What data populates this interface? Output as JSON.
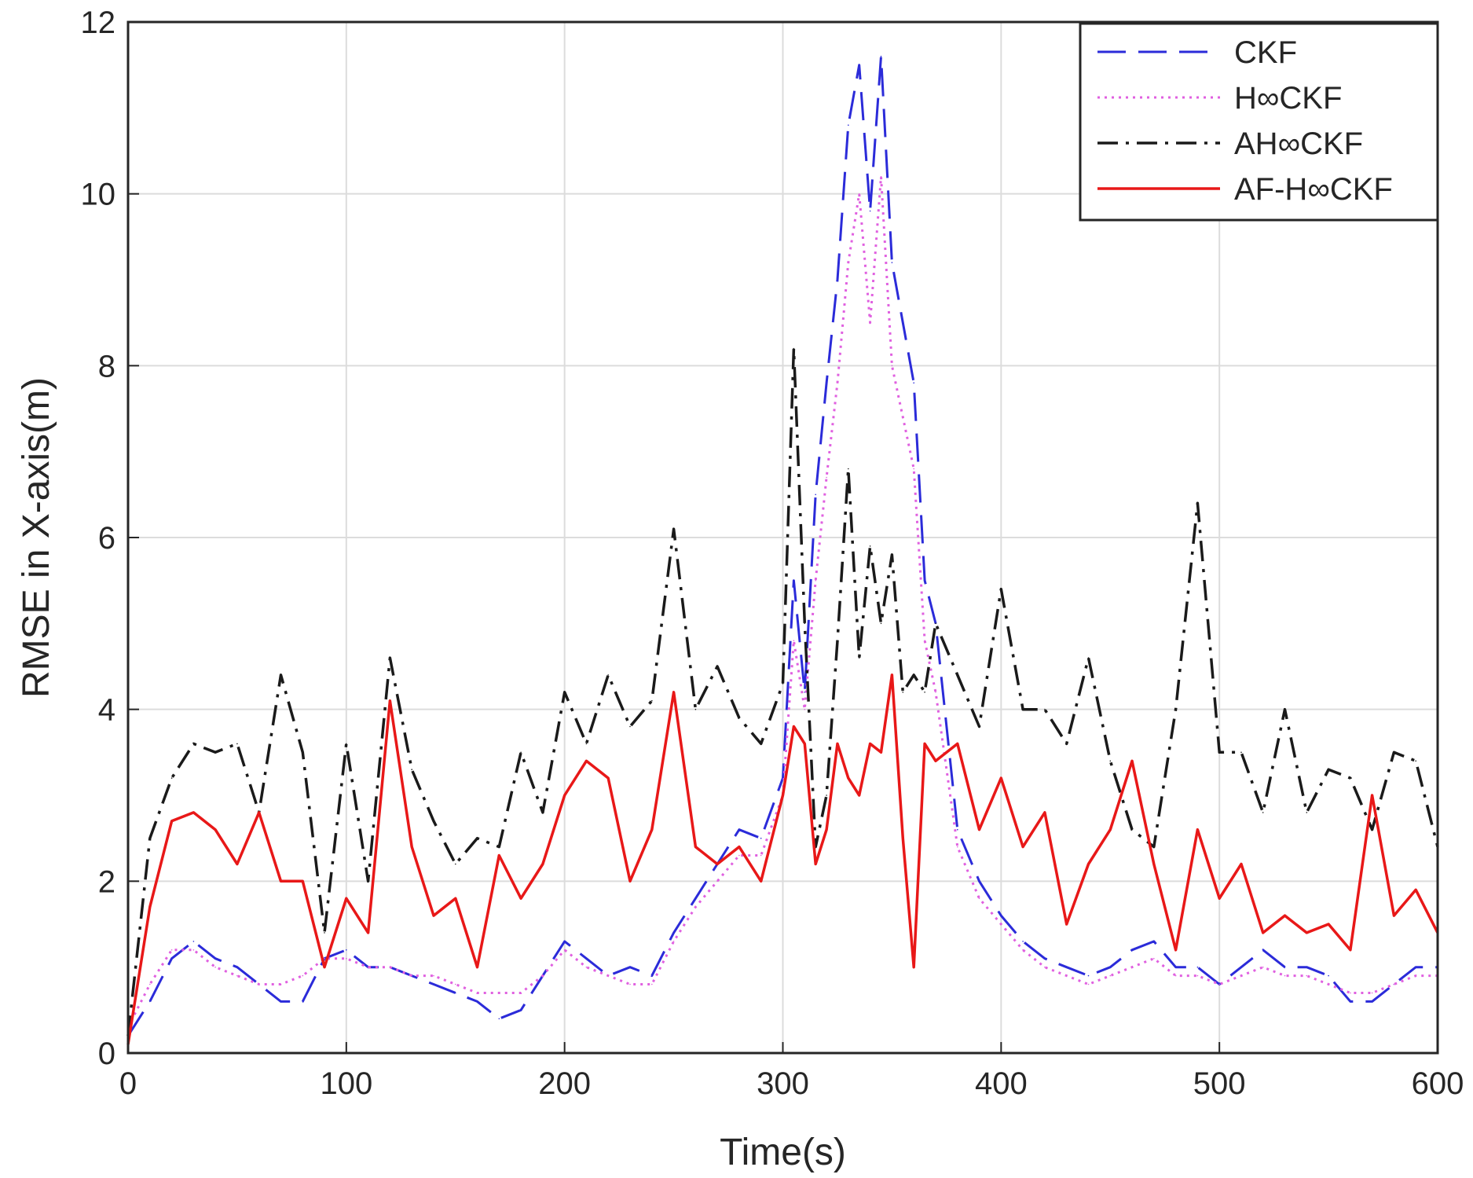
{
  "chart_data": {
    "type": "line",
    "title": "",
    "xlabel": "Time(s)",
    "ylabel": "RMSE in X-axis(m)",
    "xlim": [
      0,
      600
    ],
    "ylim": [
      0,
      12
    ],
    "x_ticks": [
      "0",
      "100",
      "200",
      "300",
      "400",
      "500",
      "600"
    ],
    "y_ticks": [
      "0",
      "2",
      "4",
      "6",
      "8",
      "10",
      "12"
    ],
    "grid": true,
    "legend_position": "top-right",
    "x": [
      0,
      10,
      20,
      30,
      40,
      50,
      60,
      70,
      80,
      90,
      100,
      110,
      120,
      130,
      140,
      150,
      160,
      170,
      180,
      190,
      200,
      210,
      220,
      230,
      240,
      250,
      260,
      270,
      280,
      290,
      300,
      305,
      310,
      315,
      320,
      325,
      330,
      335,
      340,
      345,
      350,
      355,
      360,
      365,
      370,
      380,
      390,
      400,
      410,
      420,
      430,
      440,
      450,
      460,
      470,
      480,
      490,
      500,
      510,
      520,
      530,
      540,
      550,
      560,
      570,
      580,
      590,
      600
    ],
    "series": [
      {
        "name": "CKF",
        "color": "#2b2bd9",
        "style": "dashed",
        "values": [
          0.2,
          0.6,
          1.1,
          1.3,
          1.1,
          1.0,
          0.8,
          0.6,
          0.6,
          1.1,
          1.2,
          1.0,
          1.0,
          0.9,
          0.8,
          0.7,
          0.6,
          0.4,
          0.5,
          0.9,
          1.3,
          1.1,
          0.9,
          1.0,
          0.9,
          1.4,
          1.8,
          2.2,
          2.6,
          2.5,
          3.2,
          5.5,
          4.2,
          6.5,
          7.8,
          9.0,
          10.8,
          11.5,
          9.8,
          11.6,
          9.2,
          8.5,
          7.8,
          5.5,
          5.0,
          2.6,
          2.0,
          1.6,
          1.3,
          1.1,
          1.0,
          0.9,
          1.0,
          1.2,
          1.3,
          1.0,
          1.0,
          0.8,
          1.0,
          1.2,
          1.0,
          1.0,
          0.9,
          0.6,
          0.6,
          0.8,
          1.0,
          1.0
        ]
      },
      {
        "name": "H∞CKF",
        "color": "#e060e0",
        "style": "dotted",
        "values": [
          0.3,
          0.8,
          1.2,
          1.2,
          1.0,
          0.9,
          0.8,
          0.8,
          0.9,
          1.1,
          1.1,
          1.0,
          1.0,
          0.9,
          0.9,
          0.8,
          0.7,
          0.7,
          0.7,
          0.9,
          1.2,
          1.0,
          0.9,
          0.8,
          0.8,
          1.3,
          1.7,
          2.0,
          2.3,
          2.3,
          3.0,
          4.8,
          4.0,
          5.5,
          6.7,
          7.8,
          9.2,
          10.0,
          8.5,
          10.2,
          8.0,
          7.4,
          6.8,
          4.8,
          4.2,
          2.4,
          1.8,
          1.5,
          1.2,
          1.0,
          0.9,
          0.8,
          0.9,
          1.0,
          1.1,
          0.9,
          0.9,
          0.8,
          0.9,
          1.0,
          0.9,
          0.9,
          0.8,
          0.7,
          0.7,
          0.8,
          0.9,
          0.9
        ]
      },
      {
        "name": "AH∞CKF",
        "color": "#1a1a1a",
        "style": "dash-dot",
        "values": [
          0.2,
          2.5,
          3.2,
          3.6,
          3.5,
          3.6,
          2.8,
          4.4,
          3.5,
          1.4,
          3.6,
          2.0,
          4.6,
          3.3,
          2.7,
          2.2,
          2.5,
          2.4,
          3.5,
          2.8,
          4.2,
          3.6,
          4.4,
          3.8,
          4.1,
          6.1,
          4.0,
          4.5,
          3.9,
          3.6,
          4.3,
          8.2,
          5.0,
          2.4,
          3.0,
          4.8,
          6.8,
          4.6,
          5.9,
          5.0,
          5.8,
          4.2,
          4.4,
          4.2,
          5.0,
          4.4,
          3.8,
          5.4,
          4.0,
          4.0,
          3.6,
          4.6,
          3.4,
          2.6,
          2.4,
          4.0,
          6.4,
          3.5,
          3.5,
          2.8,
          4.0,
          2.8,
          3.3,
          3.2,
          2.6,
          3.5,
          3.4,
          2.4
        ]
      },
      {
        "name": "AF-H∞CKF",
        "color": "#e81818",
        "style": "solid",
        "values": [
          0.1,
          1.7,
          2.7,
          2.8,
          2.6,
          2.2,
          2.8,
          2.0,
          2.0,
          1.0,
          1.8,
          1.4,
          4.1,
          2.4,
          1.6,
          1.8,
          1.0,
          2.3,
          1.8,
          2.2,
          3.0,
          3.4,
          3.2,
          2.0,
          2.6,
          4.2,
          2.4,
          2.2,
          2.4,
          2.0,
          3.0,
          3.8,
          3.6,
          2.2,
          2.6,
          3.6,
          3.2,
          3.0,
          3.6,
          3.5,
          4.4,
          2.5,
          1.0,
          3.6,
          3.4,
          3.6,
          2.6,
          3.2,
          2.4,
          2.8,
          1.5,
          2.2,
          2.6,
          3.4,
          2.2,
          1.2,
          2.6,
          1.8,
          2.2,
          1.4,
          1.6,
          1.4,
          1.5,
          1.2,
          3.0,
          1.6,
          1.9,
          1.4
        ]
      }
    ]
  }
}
